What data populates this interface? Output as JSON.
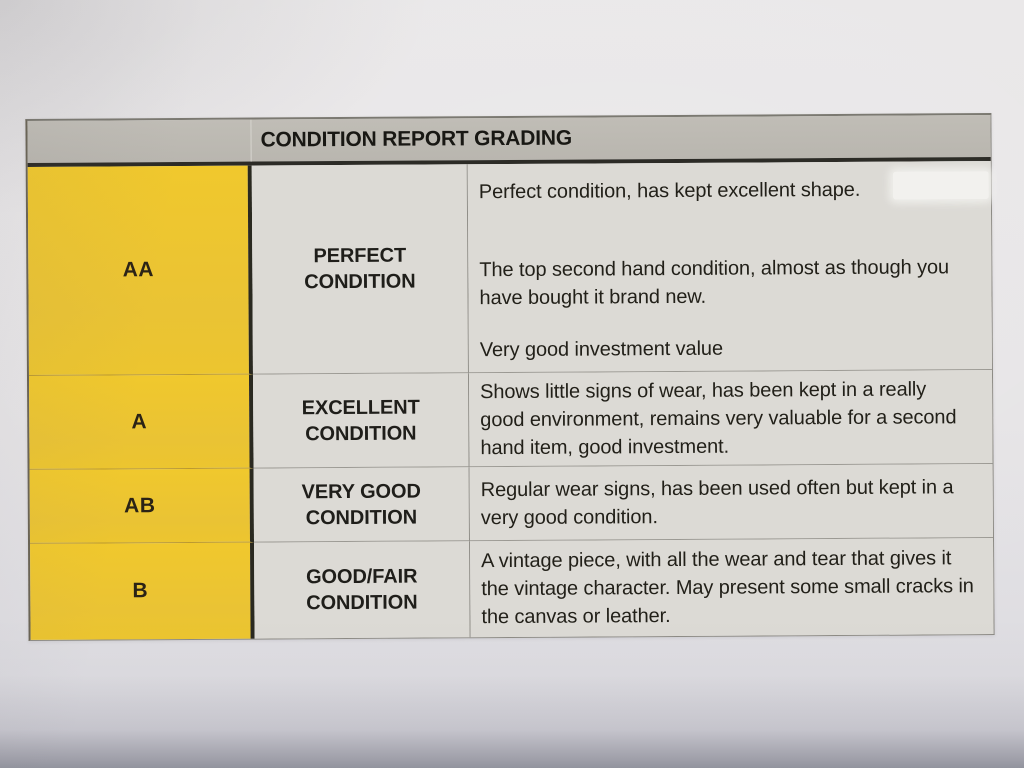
{
  "document": {
    "title": "CONDITION REPORT GRADING",
    "rows": [
      {
        "grade": "AA",
        "condition": "PERFECT CONDITION",
        "paragraphs": [
          "Perfect condition, has kept excellent shape.",
          "The top second hand condition, almost as though you have bought it brand new.",
          "Very good investment value"
        ]
      },
      {
        "grade": "A",
        "condition": "EXCELLENT CONDITION",
        "paragraphs": [
          "Shows little signs of wear, has been kept in a really good environment, remains very valuable for a second hand item, good investment."
        ]
      },
      {
        "grade": "AB",
        "condition": "VERY GOOD CONDITION",
        "paragraphs": [
          "Regular wear signs, has been used often but kept in a very good condition."
        ]
      },
      {
        "grade": "B",
        "condition": "GOOD/FAIR CONDITION",
        "paragraphs": [
          "A vintage piece, with all the wear and tear that gives it the vintage character. May present some small cracks in the canvas or leather."
        ]
      }
    ],
    "colors": {
      "grade_cell_yellow": "#ecc52f",
      "header_bar_gray": "#bcb9b2",
      "cell_gray": "#dcdad5",
      "text_black": "#1f1e1a"
    }
  }
}
